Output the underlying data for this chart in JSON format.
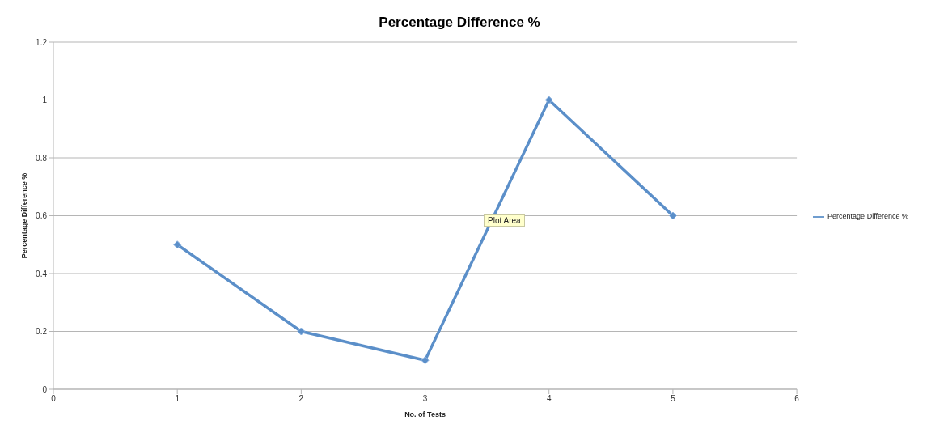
{
  "chart_data": {
    "type": "line",
    "title": "Percentage Difference %",
    "xlabel": "No. of Tests",
    "ylabel": "Percentage Difference  %",
    "x": [
      1,
      2,
      3,
      4,
      5
    ],
    "series": [
      {
        "name": "Percentage Difference %",
        "color": "#5b8fc9",
        "values": [
          0.5,
          0.2,
          0.1,
          1,
          0.6
        ]
      }
    ],
    "xlim": [
      0,
      6
    ],
    "xticks": [
      0,
      1,
      2,
      3,
      4,
      5,
      6
    ],
    "ylim": [
      0,
      1.2
    ],
    "yticks": [
      0,
      0.2,
      0.4,
      0.6,
      0.8,
      1,
      1.2
    ],
    "grid": "y",
    "legend": "right",
    "marker": "diamond",
    "line_style": "solid",
    "annotations": [
      "Plot Area"
    ]
  }
}
